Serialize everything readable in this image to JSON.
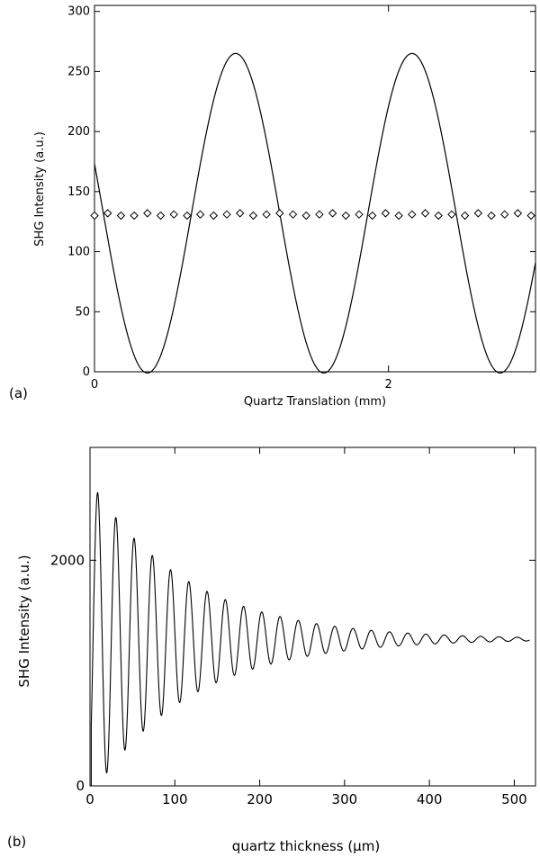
{
  "chart_data": [
    {
      "panel_label": "(a)",
      "type": "line",
      "xlabel": "Quartz Translation (mm)",
      "ylabel": "SHG Intensity (a.u.)",
      "xlim": [
        0,
        3.0
      ],
      "ylim": [
        0,
        305
      ],
      "xticks": [
        0,
        2
      ],
      "xtick_labels": [
        "0",
        "2"
      ],
      "yticks": [
        0,
        50,
        100,
        150,
        200,
        250,
        300
      ],
      "ytick_labels": [
        "0",
        "50",
        "100",
        "150",
        "200",
        "250",
        "300"
      ],
      "grid": false,
      "legend": "none",
      "series": [
        {
          "style": "solid-line",
          "color": "#000000",
          "model": "cosine fringe",
          "period": 1.2,
          "mean": 132,
          "amplitude": 133,
          "peaks_x": [
            0.96,
            2.16
          ],
          "minima_x": [
            0.36,
            1.56,
            2.76
          ],
          "peak_y": 265,
          "min_y": 0
        },
        {
          "style": "open-diamond-markers",
          "color": "#000000",
          "x": [
            0.0,
            0.09,
            0.18,
            0.27,
            0.36,
            0.45,
            0.54,
            0.63,
            0.72,
            0.81,
            0.9,
            0.99,
            1.08,
            1.17,
            1.26,
            1.35,
            1.44,
            1.53,
            1.62,
            1.71,
            1.8,
            1.89,
            1.98,
            2.07,
            2.16,
            2.25,
            2.34,
            2.43,
            2.52,
            2.61,
            2.7,
            2.79,
            2.88,
            2.97
          ],
          "y": [
            130,
            132,
            130,
            130,
            132,
            130,
            131,
            130,
            131,
            130,
            131,
            132,
            130,
            131,
            132,
            131,
            130,
            131,
            132,
            130,
            131,
            130,
            132,
            130,
            131,
            132,
            130,
            131,
            130,
            132,
            130,
            131,
            132,
            130
          ]
        }
      ]
    },
    {
      "panel_label": "(b)",
      "type": "line",
      "xlabel": "quartz thickness (μm)",
      "ylabel": "SHG Intensity (a.u.)",
      "xlim": [
        0,
        525
      ],
      "ylim": [
        0,
        3000
      ],
      "xticks": [
        0,
        100,
        200,
        300,
        400,
        500
      ],
      "xtick_labels": [
        "0",
        "100",
        "200",
        "300",
        "400",
        "500"
      ],
      "yticks": [
        0,
        2000
      ],
      "ytick_labels": [
        "0",
        "2000"
      ],
      "grid": false,
      "legend": "none",
      "series": [
        {
          "style": "solid-line",
          "color": "#000000",
          "model": "damped oscillation",
          "mean": 1300,
          "initial_amplitude": 1300,
          "fringe_period": 21.5,
          "decay_length": 115,
          "first_peak": [
            9,
            2570
          ],
          "first_min": [
            20,
            25
          ],
          "asymptote": 1300
        }
      ]
    }
  ]
}
